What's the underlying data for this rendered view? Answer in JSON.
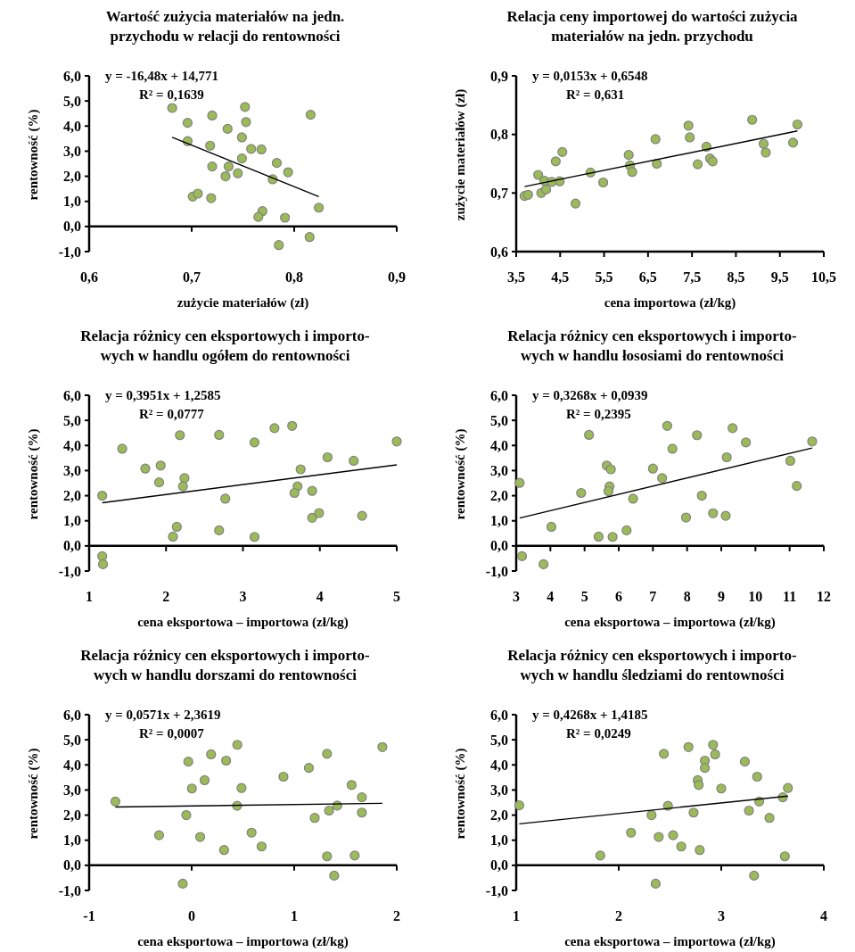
{
  "chart_data": [
    {
      "type": "scatter",
      "title": "Wartość zużycia materiałów na jedn.\nprzychodu w relacji do rentowności",
      "xlabel": "zużycie materiałów (zł)",
      "ylabel": "rentowność (%)",
      "xlim": [
        0.6,
        0.9
      ],
      "xticks": [
        {
          "value": 0.6,
          "label": "0,6"
        },
        {
          "value": 0.7,
          "label": "0,7"
        },
        {
          "value": 0.8,
          "label": "0,8"
        },
        {
          "value": 0.9,
          "label": "0,9"
        }
      ],
      "ylim": [
        -1,
        6
      ],
      "yticks": [
        {
          "value": -1,
          "label": "-1,0"
        },
        {
          "value": 0,
          "label": "0,0"
        },
        {
          "value": 1,
          "label": "1,0"
        },
        {
          "value": 2,
          "label": "2,0"
        },
        {
          "value": 3,
          "label": "3,0"
        },
        {
          "value": 4,
          "label": "4,0"
        },
        {
          "value": 5,
          "label": "5,0"
        },
        {
          "value": 6,
          "label": "6,0"
        }
      ],
      "annotations": [
        "y = -16,48x + 14,771",
        "R² = 0,1639"
      ],
      "series": [
        {
          "marker": "circle",
          "color": "#9bbb59",
          "x": [
            0.681,
            0.696,
            0.696,
            0.701,
            0.706,
            0.72,
            0.718,
            0.72,
            0.719,
            0.735,
            0.736,
            0.733,
            0.745,
            0.749,
            0.749,
            0.752,
            0.753,
            0.758,
            0.768,
            0.769,
            0.765,
            0.783,
            0.794,
            0.779,
            0.791,
            0.785,
            0.816,
            0.815,
            0.824
          ],
          "values": [
            4.72,
            4.13,
            3.4,
            1.19,
            1.31,
            4.42,
            3.22,
            2.39,
            1.13,
            3.89,
            2.39,
            2.0,
            2.12,
            3.55,
            2.71,
            4.76,
            4.16,
            3.09,
            3.07,
            0.61,
            0.38,
            2.53,
            2.16,
            1.88,
            0.35,
            -0.74,
            4.45,
            -0.42,
            0.75
          ]
        },
        {
          "type": "line",
          "color": "#000000",
          "x": [
            0.681,
            0.824
          ],
          "values": [
            3.55,
            1.19
          ]
        }
      ]
    },
    {
      "type": "scatter",
      "title": "Relacja ceny importowej do wartości zużycia\nmateriałów na jedn. przychodu",
      "xlabel": "cena importowa (zł/kg)",
      "ylabel": "zużycie materiałów (zł)",
      "xlim": [
        3.5,
        10.5
      ],
      "xticks": [
        {
          "value": 3.5,
          "label": "3,5"
        },
        {
          "value": 4.5,
          "label": "4,5"
        },
        {
          "value": 5.5,
          "label": "5,5"
        },
        {
          "value": 6.5,
          "label": "6,5"
        },
        {
          "value": 7.5,
          "label": "7,5"
        },
        {
          "value": 8.5,
          "label": "8,5"
        },
        {
          "value": 9.5,
          "label": "9,5"
        },
        {
          "value": 10.5,
          "label": "10,5"
        }
      ],
      "ylim": [
        0.6,
        0.9
      ],
      "yticks": [
        {
          "value": 0.6,
          "label": "0,6"
        },
        {
          "value": 0.7,
          "label": "0,7"
        },
        {
          "value": 0.8,
          "label": "0,8"
        },
        {
          "value": 0.9,
          "label": "0,9"
        }
      ],
      "annotations": [
        "y = 0,0153x + 0,6548",
        "R² = 0,631"
      ],
      "series": [
        {
          "marker": "circle",
          "color": "#9bbb59",
          "x": [
            3.69,
            3.77,
            4.0,
            4.07,
            4.14,
            4.18,
            4.31,
            4.4,
            4.49,
            4.55,
            4.85,
            5.19,
            5.48,
            6.06,
            6.09,
            6.14,
            6.67,
            6.7,
            7.42,
            7.45,
            7.63,
            7.83,
            7.91,
            7.97,
            8.87,
            9.13,
            9.18,
            9.8,
            9.9
          ],
          "values": [
            0.695,
            0.697,
            0.731,
            0.7,
            0.721,
            0.706,
            0.719,
            0.754,
            0.72,
            0.77,
            0.682,
            0.735,
            0.718,
            0.765,
            0.747,
            0.736,
            0.792,
            0.75,
            0.815,
            0.795,
            0.749,
            0.779,
            0.759,
            0.754,
            0.825,
            0.784,
            0.769,
            0.786,
            0.817
          ]
        },
        {
          "type": "line",
          "color": "#000000",
          "x": [
            3.69,
            9.9
          ],
          "values": [
            0.711,
            0.806
          ]
        }
      ]
    },
    {
      "type": "scatter",
      "title": "Relacja różnicy cen eksportowych i importo-\nwych w handlu ogółem do rentowności",
      "xlabel": "cena eksportowa –  importowa (zł/kg)",
      "ylabel": "rentowność (%)",
      "xlim": [
        1,
        5
      ],
      "xticks": [
        1,
        2,
        3,
        4,
        5
      ],
      "ylim": [
        -1,
        6
      ],
      "yticks": [
        {
          "value": -1,
          "label": "-1,0"
        },
        {
          "value": 0,
          "label": "0,0"
        },
        {
          "value": 1,
          "label": "1,0"
        },
        {
          "value": 2,
          "label": "2,0"
        },
        {
          "value": 3,
          "label": "3,0"
        },
        {
          "value": 4,
          "label": "4,0"
        },
        {
          "value": 5,
          "label": "5,0"
        },
        {
          "value": 6,
          "label": "6,0"
        }
      ],
      "annotations": [
        "y = 0,3951x + 1,2585",
        "R² = 0,0777"
      ],
      "series": [
        {
          "marker": "circle",
          "color": "#9bbb59",
          "x": [
            1.17,
            1.18,
            1.17,
            1.43,
            1.73,
            1.93,
            1.91,
            2.18,
            2.24,
            2.22,
            2.14,
            2.09,
            2.69,
            2.77,
            2.69,
            3.15,
            3.15,
            3.41,
            3.64,
            3.75,
            3.71,
            3.67,
            3.9,
            3.9,
            3.99,
            4.1,
            4.44,
            4.55,
            5.0
          ],
          "values": [
            -0.41,
            -0.73,
            2.0,
            3.87,
            3.08,
            3.2,
            2.53,
            4.41,
            2.7,
            2.37,
            0.76,
            0.37,
            4.42,
            1.88,
            0.62,
            4.12,
            0.36,
            4.69,
            4.78,
            3.05,
            2.37,
            2.11,
            2.19,
            1.12,
            1.31,
            3.53,
            3.39,
            1.2,
            4.16
          ]
        },
        {
          "type": "line",
          "color": "#000000",
          "x": [
            1.17,
            5.0
          ],
          "values": [
            1.72,
            3.23
          ]
        }
      ]
    },
    {
      "type": "scatter",
      "title": "Relacja różnicy cen eksportowych i importo-\nwych w handlu łososiami do rentowności",
      "xlabel": "cena eksportowa  – importowa (zł/kg)",
      "ylabel": "rentowność (%)",
      "xlim": [
        3,
        12
      ],
      "xticks": [
        3,
        4,
        5,
        6,
        7,
        8,
        9,
        10,
        11,
        12
      ],
      "ylim": [
        -1,
        6
      ],
      "yticks": [
        {
          "value": -1,
          "label": "-1,0"
        },
        {
          "value": 0,
          "label": "0,0"
        },
        {
          "value": 1,
          "label": "1,0"
        },
        {
          "value": 2,
          "label": "2,0"
        },
        {
          "value": 3,
          "label": "3,0"
        },
        {
          "value": 4,
          "label": "4,0"
        },
        {
          "value": 5,
          "label": "5,0"
        },
        {
          "value": 6,
          "label": "6,0"
        }
      ],
      "annotations": [
        "y = 0,3268x + 0,0939",
        "R² = 0,2395"
      ],
      "series": [
        {
          "marker": "circle",
          "color": "#9bbb59",
          "x": [
            3.1,
            3.17,
            3.8,
            4.03,
            4.9,
            5.13,
            5.41,
            5.65,
            5.77,
            5.73,
            5.7,
            5.82,
            6.23,
            6.42,
            7.0,
            7.27,
            7.42,
            7.57,
            7.97,
            8.29,
            8.43,
            8.76,
            9.13,
            9.33,
            9.16,
            9.72,
            11.02,
            11.21,
            11.66
          ],
          "values": [
            2.51,
            -0.41,
            -0.73,
            0.76,
            2.11,
            4.42,
            0.37,
            3.2,
            3.05,
            2.37,
            2.18,
            0.36,
            0.62,
            1.88,
            3.08,
            2.7,
            4.78,
            3.87,
            1.13,
            4.41,
            2.0,
            1.3,
            1.2,
            4.69,
            3.53,
            4.12,
            3.39,
            2.39,
            4.16
          ]
        },
        {
          "type": "line",
          "color": "#000000",
          "x": [
            3.1,
            11.66
          ],
          "values": [
            1.11,
            3.9
          ]
        }
      ]
    },
    {
      "type": "scatter",
      "title": "Relacja różnicy cen eksportowych i importo-\nwych w handlu dorszami do rentowności",
      "xlabel": "cena eksportowa –  importowa (zł/kg)",
      "ylabel": "rentowność (%)",
      "xlim": [
        -1,
        2
      ],
      "xticks": [
        -1,
        0,
        1,
        2
      ],
      "ylim": [
        -1,
        6
      ],
      "yticks": [
        {
          "value": -1,
          "label": "-1,0"
        },
        {
          "value": 0,
          "label": "0,0"
        },
        {
          "value": 1,
          "label": "1,0"
        },
        {
          "value": 2,
          "label": "2,0"
        },
        {
          "value": 3,
          "label": "3,0"
        },
        {
          "value": 4,
          "label": "4,0"
        },
        {
          "value": 5,
          "label": "5,0"
        },
        {
          "value": 6,
          "label": "6,0"
        }
      ],
      "annotations": [
        "y = 0,0571x + 2,3619",
        "R² = 0,0007"
      ],
      "series": [
        {
          "marker": "circle",
          "color": "#9bbb59",
          "x": [
            -0.744,
            -0.318,
            -0.087,
            -0.053,
            -0.033,
            0.002,
            0.083,
            0.126,
            0.189,
            0.316,
            0.336,
            0.445,
            0.443,
            0.486,
            0.584,
            0.682,
            0.895,
            1.143,
            1.2,
            1.32,
            1.32,
            1.34,
            1.39,
            1.42,
            1.56,
            1.59,
            1.66,
            1.66,
            1.86
          ],
          "values": [
            2.54,
            1.2,
            -0.73,
            2.0,
            4.13,
            3.06,
            1.13,
            3.39,
            4.42,
            0.61,
            4.17,
            4.8,
            2.37,
            3.08,
            1.3,
            0.75,
            3.53,
            3.88,
            1.89,
            4.44,
            0.36,
            2.18,
            -0.41,
            2.38,
            3.2,
            0.39,
            2.71,
            2.1,
            4.71
          ]
        },
        {
          "type": "line",
          "color": "#000000",
          "x": [
            -0.744,
            1.86
          ],
          "values": [
            2.32,
            2.47
          ]
        }
      ]
    },
    {
      "type": "scatter",
      "title": "Relacja różnicy cen eksportowych i importo-\nwych w handlu śledziami do rentowności",
      "xlabel": "cena eksportowa –  importowa (zł/kg)",
      "ylabel": "rentowność (%)",
      "xlim": [
        1,
        4
      ],
      "xticks": [
        1,
        2,
        3,
        4
      ],
      "ylim": [
        -1,
        6
      ],
      "yticks": [
        {
          "value": -1,
          "label": "-1,0"
        },
        {
          "value": 0,
          "label": "0,0"
        },
        {
          "value": 1,
          "label": "1,0"
        },
        {
          "value": 2,
          "label": "2,0"
        },
        {
          "value": 3,
          "label": "3,0"
        },
        {
          "value": 4,
          "label": "4,0"
        },
        {
          "value": 5,
          "label": "5,0"
        },
        {
          "value": 6,
          "label": "6,0"
        }
      ],
      "annotations": [
        "y = 0,4268x + 1,4185",
        "R² = 0,0249"
      ],
      "series": [
        {
          "marker": "circle",
          "color": "#9bbb59",
          "x": [
            1.03,
            1.82,
            2.12,
            2.32,
            2.36,
            2.39,
            2.44,
            2.48,
            2.53,
            2.61,
            2.68,
            2.73,
            2.77,
            2.78,
            2.79,
            2.84,
            2.84,
            2.92,
            2.94,
            3.0,
            3.23,
            3.27,
            3.32,
            3.35,
            3.37,
            3.47,
            3.6,
            3.62,
            3.65
          ],
          "values": [
            2.39,
            0.39,
            1.3,
            2.0,
            -0.73,
            1.13,
            4.44,
            2.37,
            1.2,
            0.75,
            4.71,
            2.1,
            3.39,
            3.2,
            0.61,
            4.17,
            3.88,
            4.8,
            4.42,
            3.06,
            4.13,
            2.18,
            -0.41,
            3.53,
            2.54,
            1.89,
            2.71,
            0.36,
            3.08
          ]
        },
        {
          "type": "line",
          "color": "#000000",
          "x": [
            1.03,
            3.65
          ],
          "values": [
            1.65,
            2.76
          ]
        }
      ]
    }
  ]
}
